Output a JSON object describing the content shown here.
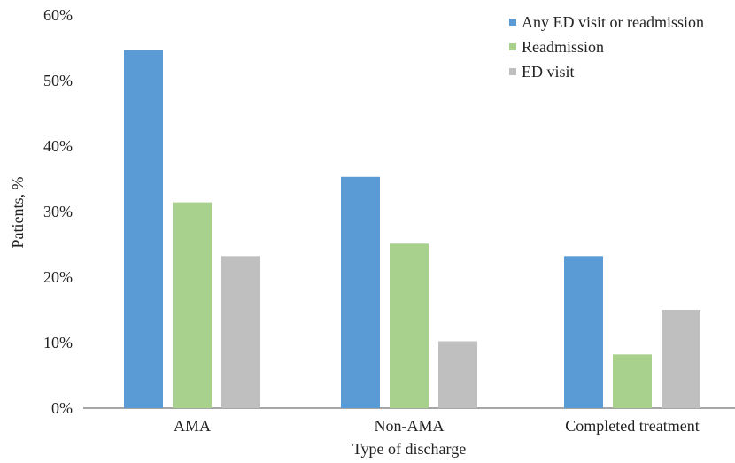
{
  "chart_data": {
    "type": "bar",
    "categories": [
      "AMA",
      "Non-AMA",
      "Completed treatment"
    ],
    "series": [
      {
        "name": "Any ED visit or readmission",
        "color": "#5b9bd5",
        "values": [
          54.7,
          35.3,
          23.2
        ]
      },
      {
        "name": "Readmission",
        "color": "#a9d18e",
        "values": [
          31.4,
          25.1,
          8.2
        ]
      },
      {
        "name": "ED visit",
        "color": "#bfbfbf",
        "values": [
          23.2,
          10.2,
          15.0
        ]
      }
    ],
    "title": "",
    "xlabel": "Type of discharge",
    "ylabel": "Patients, %",
    "ylim": [
      0,
      60
    ],
    "yticks": [
      "0%",
      "10%",
      "20%",
      "30%",
      "40%",
      "50%",
      "60%"
    ],
    "grid": false,
    "legend_position": "top-right"
  }
}
